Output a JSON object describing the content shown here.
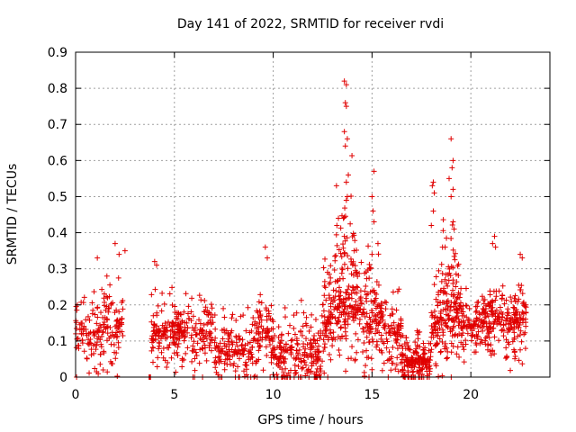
{
  "chart_data": {
    "type": "scatter",
    "title": "Day 141 of 2022, SRMTID for receiver rvdi",
    "xlabel": "GPS time / hours",
    "ylabel": "SRMTID / TECUs",
    "xlim": [
      0,
      24
    ],
    "ylim": [
      0,
      0.9
    ],
    "x_ticks": [
      0,
      5,
      10,
      15,
      20
    ],
    "y_ticks": [
      0,
      0.1,
      0.2,
      0.3,
      0.4,
      0.5,
      0.6,
      0.7,
      0.8,
      0.9
    ],
    "grid": true,
    "marker": "plus",
    "color": "#e00000",
    "segments": [
      {
        "start": 0.0,
        "end": 2.4,
        "base": 0.12,
        "spread": 0.15,
        "peak_hour": 2.0,
        "peak": 0.37,
        "count": 180
      },
      {
        "start": 3.7,
        "end": 3.8,
        "base": 0.0,
        "spread": 0.0,
        "peak_hour": 3.75,
        "peak": 0.0,
        "count": 4
      },
      {
        "start": 3.8,
        "end": 7.0,
        "base": 0.12,
        "spread": 0.14,
        "peak_hour": 5.3,
        "peak": 0.29,
        "count": 260
      },
      {
        "start": 7.0,
        "end": 9.0,
        "base": 0.06,
        "spread": 0.14,
        "peak_hour": 7.8,
        "peak": 0.28,
        "count": 150
      },
      {
        "start": 9.0,
        "end": 10.0,
        "base": 0.1,
        "spread": 0.15,
        "peak_hour": 9.6,
        "peak": 0.36,
        "count": 90
      },
      {
        "start": 10.0,
        "end": 12.5,
        "base": 0.05,
        "spread": 0.15,
        "peak_hour": 11.5,
        "peak": 0.29,
        "count": 220
      },
      {
        "start": 12.5,
        "end": 14.5,
        "base": 0.15,
        "spread": 0.2,
        "peak_hour": 13.7,
        "peak": 0.82,
        "count": 260
      },
      {
        "start": 14.5,
        "end": 16.5,
        "base": 0.12,
        "spread": 0.16,
        "peak_hour": 15.1,
        "peak": 0.57,
        "count": 200
      },
      {
        "start": 16.5,
        "end": 18.0,
        "base": 0.04,
        "spread": 0.1,
        "peak_hour": 17.0,
        "peak": 0.16,
        "count": 180
      },
      {
        "start": 18.0,
        "end": 19.5,
        "base": 0.15,
        "spread": 0.18,
        "peak_hour": 19.0,
        "peak": 0.66,
        "count": 200
      },
      {
        "start": 19.5,
        "end": 21.5,
        "base": 0.14,
        "spread": 0.12,
        "peak_hour": 21.2,
        "peak": 0.39,
        "count": 190
      },
      {
        "start": 21.5,
        "end": 22.8,
        "base": 0.15,
        "spread": 0.14,
        "peak_hour": 22.5,
        "peak": 0.34,
        "count": 130
      }
    ],
    "outliers": [
      {
        "x": 0.05,
        "y": 0.0
      },
      {
        "x": 13.6,
        "y": 0.82
      },
      {
        "x": 13.7,
        "y": 0.81
      },
      {
        "x": 13.65,
        "y": 0.76
      },
      {
        "x": 13.7,
        "y": 0.75
      },
      {
        "x": 13.6,
        "y": 0.68
      },
      {
        "x": 13.75,
        "y": 0.66
      },
      {
        "x": 13.65,
        "y": 0.64
      },
      {
        "x": 13.8,
        "y": 0.56
      },
      {
        "x": 13.7,
        "y": 0.54
      },
      {
        "x": 13.75,
        "y": 0.5
      },
      {
        "x": 13.7,
        "y": 0.49
      },
      {
        "x": 13.2,
        "y": 0.53
      },
      {
        "x": 13.3,
        "y": 0.44
      },
      {
        "x": 13.55,
        "y": 0.44
      },
      {
        "x": 13.6,
        "y": 0.39
      },
      {
        "x": 15.1,
        "y": 0.57
      },
      {
        "x": 15.0,
        "y": 0.5
      },
      {
        "x": 15.05,
        "y": 0.46
      },
      {
        "x": 15.1,
        "y": 0.43
      },
      {
        "x": 15.3,
        "y": 0.37
      },
      {
        "x": 15.0,
        "y": 0.34
      },
      {
        "x": 19.0,
        "y": 0.66
      },
      {
        "x": 19.1,
        "y": 0.6
      },
      {
        "x": 19.05,
        "y": 0.58
      },
      {
        "x": 18.9,
        "y": 0.55
      },
      {
        "x": 19.1,
        "y": 0.52
      },
      {
        "x": 19.0,
        "y": 0.5
      },
      {
        "x": 19.1,
        "y": 0.43
      },
      {
        "x": 19.15,
        "y": 0.41
      },
      {
        "x": 18.1,
        "y": 0.54
      },
      {
        "x": 18.05,
        "y": 0.53
      },
      {
        "x": 18.15,
        "y": 0.51
      },
      {
        "x": 18.1,
        "y": 0.46
      },
      {
        "x": 18.0,
        "y": 0.42
      },
      {
        "x": 18.7,
        "y": 0.36
      },
      {
        "x": 21.2,
        "y": 0.39
      },
      {
        "x": 21.1,
        "y": 0.37
      },
      {
        "x": 21.25,
        "y": 0.36
      },
      {
        "x": 9.6,
        "y": 0.36
      },
      {
        "x": 9.7,
        "y": 0.33
      },
      {
        "x": 2.0,
        "y": 0.37
      },
      {
        "x": 2.2,
        "y": 0.34
      },
      {
        "x": 1.1,
        "y": 0.33
      },
      {
        "x": 2.5,
        "y": 0.35
      },
      {
        "x": 22.5,
        "y": 0.34
      },
      {
        "x": 22.6,
        "y": 0.33
      },
      {
        "x": 4.0,
        "y": 0.32
      },
      {
        "x": 4.1,
        "y": 0.31
      }
    ]
  }
}
